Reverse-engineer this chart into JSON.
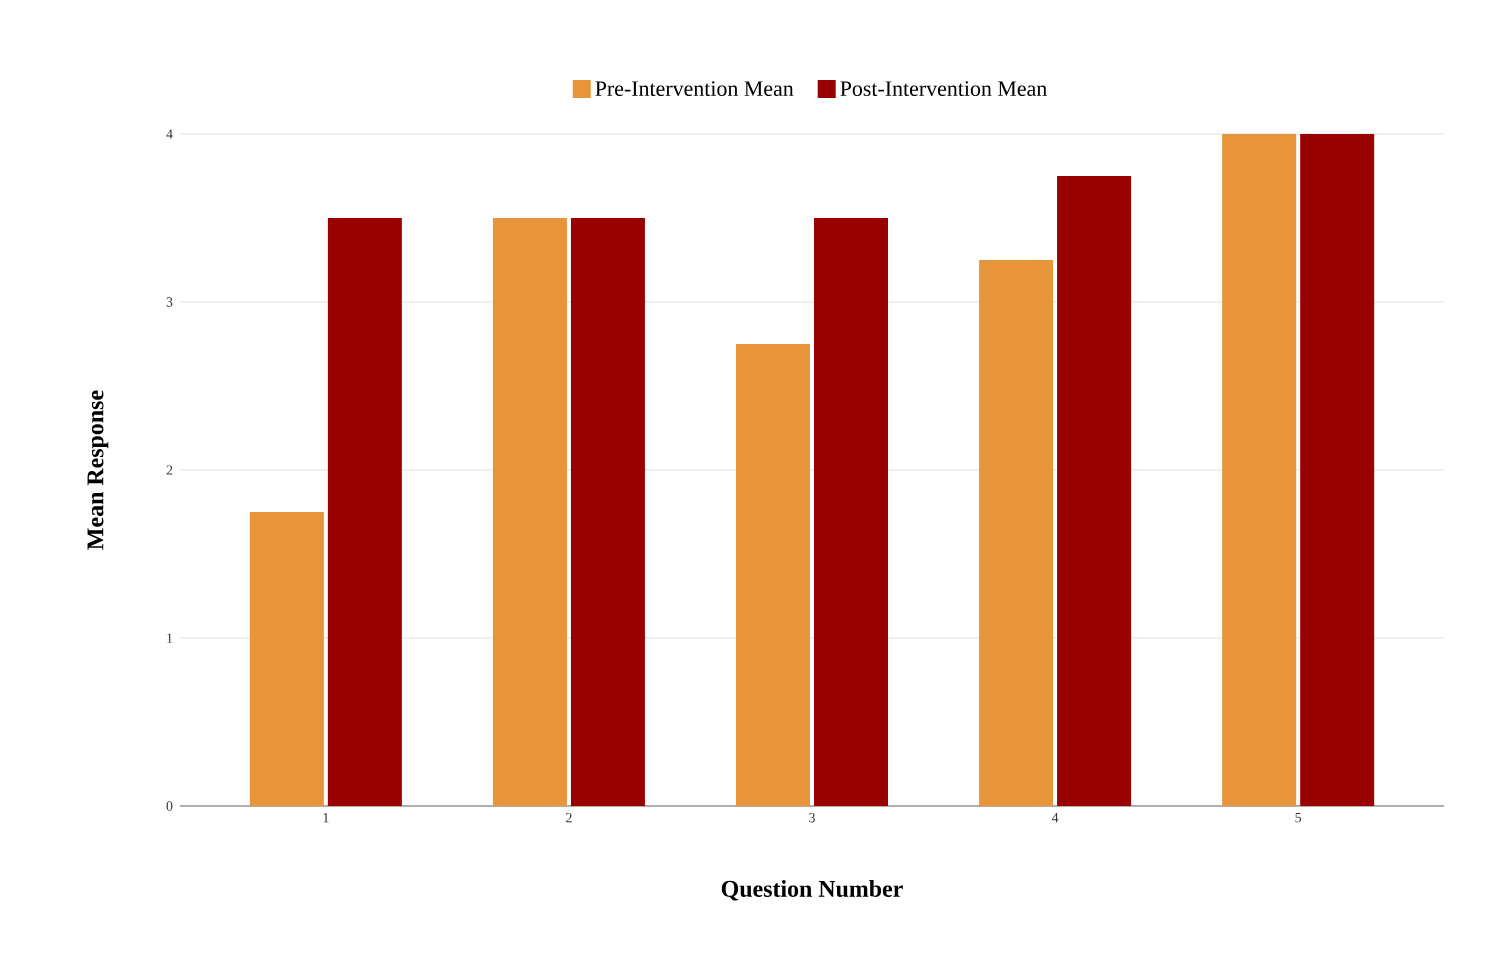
{
  "chart_data": {
    "type": "bar",
    "xlabel": "Question Number",
    "ylabel": "Mean Response",
    "categories": [
      "1",
      "2",
      "3",
      "4",
      "5"
    ],
    "series": [
      {
        "name": "Pre-Intervention Mean",
        "color": "#e8943a",
        "values": [
          1.75,
          3.5,
          2.75,
          3.25,
          4
        ]
      },
      {
        "name": "Post-Intervention Mean",
        "color": "#990000",
        "values": [
          3.5,
          3.5,
          3.5,
          3.75,
          4
        ]
      }
    ],
    "ylim": [
      0,
      4
    ],
    "yticks": [
      0,
      1,
      2,
      3,
      4
    ],
    "grid": "y",
    "legend": "top"
  }
}
